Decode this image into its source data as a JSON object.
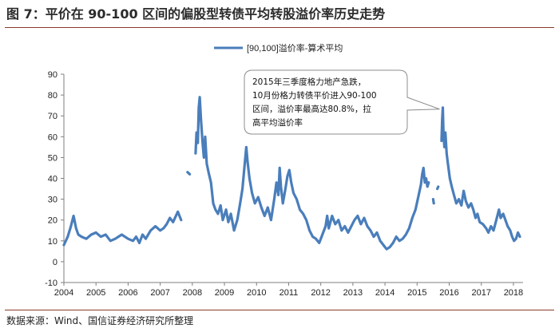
{
  "figure": {
    "title": "图 7：平价在 90-100 区间的偏股型转债平均转股溢价率历史走势",
    "source": "数据来源：Wind、国信证券经济研究所整理"
  },
  "colors": {
    "series": "#4a7ebb",
    "axis": "#7f7f7f",
    "accent_rule": "#8a3b2b"
  },
  "chart_data": {
    "type": "line",
    "title": "",
    "xlabel": "",
    "ylabel": "",
    "ylim": [
      -10,
      90
    ],
    "yticks": [
      -10,
      0,
      10,
      20,
      30,
      40,
      50,
      60,
      70,
      80,
      90
    ],
    "xlim": [
      2004,
      2018.3
    ],
    "xticks": [
      2004,
      2005,
      2006,
      2007,
      2008,
      2009,
      2010,
      2011,
      2012,
      2013,
      2014,
      2015,
      2016,
      2017,
      2018
    ],
    "legend": {
      "label": "[90,100]溢价率-算术平均",
      "placement": "top-center"
    },
    "annotation": {
      "lines": [
        "2015年三季度格力地产急跌，",
        "10月份格力转债平价进入90-100",
        "区间，溢价率最高达80.8%，拉",
        "高平均溢价率"
      ],
      "target": {
        "x": 2015.75,
        "y": 74
      }
    },
    "series": [
      {
        "name": "[90,100]溢价率-算术平均",
        "segments": [
          [
            [
              2004.0,
              8
            ],
            [
              2004.12,
              12
            ],
            [
              2004.22,
              17
            ],
            [
              2004.3,
              22
            ],
            [
              2004.38,
              16
            ],
            [
              2004.45,
              13
            ],
            [
              2004.55,
              12
            ],
            [
              2004.7,
              11
            ],
            [
              2004.85,
              13
            ],
            [
              2005.0,
              14
            ],
            [
              2005.15,
              12
            ],
            [
              2005.3,
              13
            ],
            [
              2005.45,
              10
            ],
            [
              2005.6,
              11
            ],
            [
              2005.8,
              13
            ],
            [
              2006.0,
              11
            ],
            [
              2006.15,
              10
            ],
            [
              2006.25,
              12
            ],
            [
              2006.35,
              9
            ],
            [
              2006.45,
              13
            ],
            [
              2006.55,
              11
            ],
            [
              2006.7,
              15
            ],
            [
              2006.85,
              17
            ],
            [
              2007.0,
              15
            ],
            [
              2007.1,
              16
            ],
            [
              2007.2,
              18
            ],
            [
              2007.3,
              21
            ],
            [
              2007.4,
              19
            ],
            [
              2007.55,
              24
            ],
            [
              2007.65,
              20
            ]
          ],
          [
            [
              2007.85,
              43
            ],
            [
              2007.92,
              42
            ]
          ],
          [
            [
              2008.1,
              52
            ],
            [
              2008.13,
              62
            ],
            [
              2008.17,
              57
            ],
            [
              2008.2,
              74
            ],
            [
              2008.23,
              79
            ],
            [
              2008.27,
              68
            ],
            [
              2008.32,
              57
            ],
            [
              2008.36,
              50
            ],
            [
              2008.4,
              60
            ],
            [
              2008.45,
              47
            ],
            [
              2008.52,
              42
            ],
            [
              2008.58,
              38
            ],
            [
              2008.65,
              28
            ],
            [
              2008.72,
              25
            ],
            [
              2008.8,
              23
            ],
            [
              2008.88,
              27
            ],
            [
              2008.95,
              20
            ],
            [
              2009.05,
              25
            ],
            [
              2009.12,
              19
            ],
            [
              2009.2,
              23
            ],
            [
              2009.3,
              15
            ],
            [
              2009.4,
              20
            ],
            [
              2009.48,
              27
            ],
            [
              2009.56,
              35
            ],
            [
              2009.62,
              45
            ],
            [
              2009.68,
              55
            ],
            [
              2009.72,
              48
            ],
            [
              2009.78,
              40
            ],
            [
              2009.86,
              33
            ],
            [
              2009.95,
              28
            ],
            [
              2010.05,
              31
            ],
            [
              2010.15,
              26
            ],
            [
              2010.25,
              22
            ],
            [
              2010.35,
              26
            ],
            [
              2010.45,
              20
            ],
            [
              2010.55,
              30
            ],
            [
              2010.62,
              38
            ],
            [
              2010.68,
              32
            ],
            [
              2010.72,
              45
            ],
            [
              2010.76,
              36
            ],
            [
              2010.82,
              28
            ],
            [
              2010.9,
              35
            ],
            [
              2010.96,
              41
            ],
            [
              2011.02,
              44
            ],
            [
              2011.08,
              38
            ],
            [
              2011.15,
              33
            ],
            [
              2011.25,
              30
            ],
            [
              2011.35,
              25
            ],
            [
              2011.45,
              23
            ],
            [
              2011.55,
              20
            ],
            [
              2011.65,
              15
            ],
            [
              2011.75,
              12
            ],
            [
              2011.85,
              11
            ],
            [
              2011.95,
              9
            ],
            [
              2012.05,
              13
            ],
            [
              2012.15,
              17
            ],
            [
              2012.2,
              22
            ],
            [
              2012.25,
              16
            ],
            [
              2012.35,
              22
            ],
            [
              2012.45,
              18
            ],
            [
              2012.55,
              20
            ],
            [
              2012.65,
              15
            ],
            [
              2012.75,
              17
            ],
            [
              2012.85,
              14
            ],
            [
              2012.95,
              17
            ],
            [
              2013.05,
              20
            ],
            [
              2013.15,
              22
            ],
            [
              2013.25,
              18
            ],
            [
              2013.35,
              21
            ],
            [
              2013.45,
              17
            ],
            [
              2013.55,
              15
            ],
            [
              2013.65,
              12
            ],
            [
              2013.75,
              14
            ],
            [
              2013.85,
              10
            ],
            [
              2013.95,
              8
            ],
            [
              2014.05,
              6
            ],
            [
              2014.15,
              7
            ],
            [
              2014.25,
              9
            ],
            [
              2014.35,
              12
            ],
            [
              2014.45,
              10
            ],
            [
              2014.55,
              11
            ],
            [
              2014.65,
              13
            ],
            [
              2014.75,
              16
            ],
            [
              2014.85,
              21
            ],
            [
              2014.95,
              25
            ],
            [
              2015.05,
              32
            ],
            [
              2015.12,
              37
            ],
            [
              2015.16,
              42
            ],
            [
              2015.2,
              45
            ],
            [
              2015.24,
              38
            ],
            [
              2015.28,
              40
            ],
            [
              2015.32,
              36
            ],
            [
              2015.36,
              38
            ]
          ],
          [
            [
              2015.5,
              30
            ],
            [
              2015.52,
              28
            ]
          ],
          [
            [
              2015.63,
              35
            ],
            [
              2015.66,
              36
            ]
          ],
          [
            [
              2015.76,
              58
            ],
            [
              2015.78,
              68
            ],
            [
              2015.8,
              74
            ],
            [
              2015.82,
              62
            ],
            [
              2015.85,
              55
            ],
            [
              2015.88,
              62
            ],
            [
              2015.92,
              52
            ],
            [
              2015.96,
              47
            ],
            [
              2016.02,
              40
            ],
            [
              2016.08,
              36
            ],
            [
              2016.15,
              32
            ],
            [
              2016.22,
              28
            ],
            [
              2016.3,
              30
            ],
            [
              2016.38,
              27
            ],
            [
              2016.45,
              34
            ],
            [
              2016.52,
              29
            ],
            [
              2016.6,
              26
            ],
            [
              2016.68,
              28
            ],
            [
              2016.75,
              25
            ],
            [
              2016.82,
              21
            ],
            [
              2016.88,
              23
            ],
            [
              2016.95,
              19
            ],
            [
              2017.05,
              18
            ],
            [
              2017.15,
              16
            ],
            [
              2017.22,
              14
            ],
            [
              2017.3,
              17
            ],
            [
              2017.38,
              15
            ],
            [
              2017.45,
              19
            ],
            [
              2017.5,
              22
            ],
            [
              2017.55,
              25
            ],
            [
              2017.6,
              21
            ],
            [
              2017.68,
              23
            ],
            [
              2017.75,
              20
            ],
            [
              2017.82,
              17
            ],
            [
              2017.9,
              15
            ],
            [
              2017.96,
              12
            ],
            [
              2018.02,
              10
            ],
            [
              2018.08,
              11
            ],
            [
              2018.14,
              14
            ],
            [
              2018.2,
              12
            ]
          ]
        ]
      }
    ]
  }
}
